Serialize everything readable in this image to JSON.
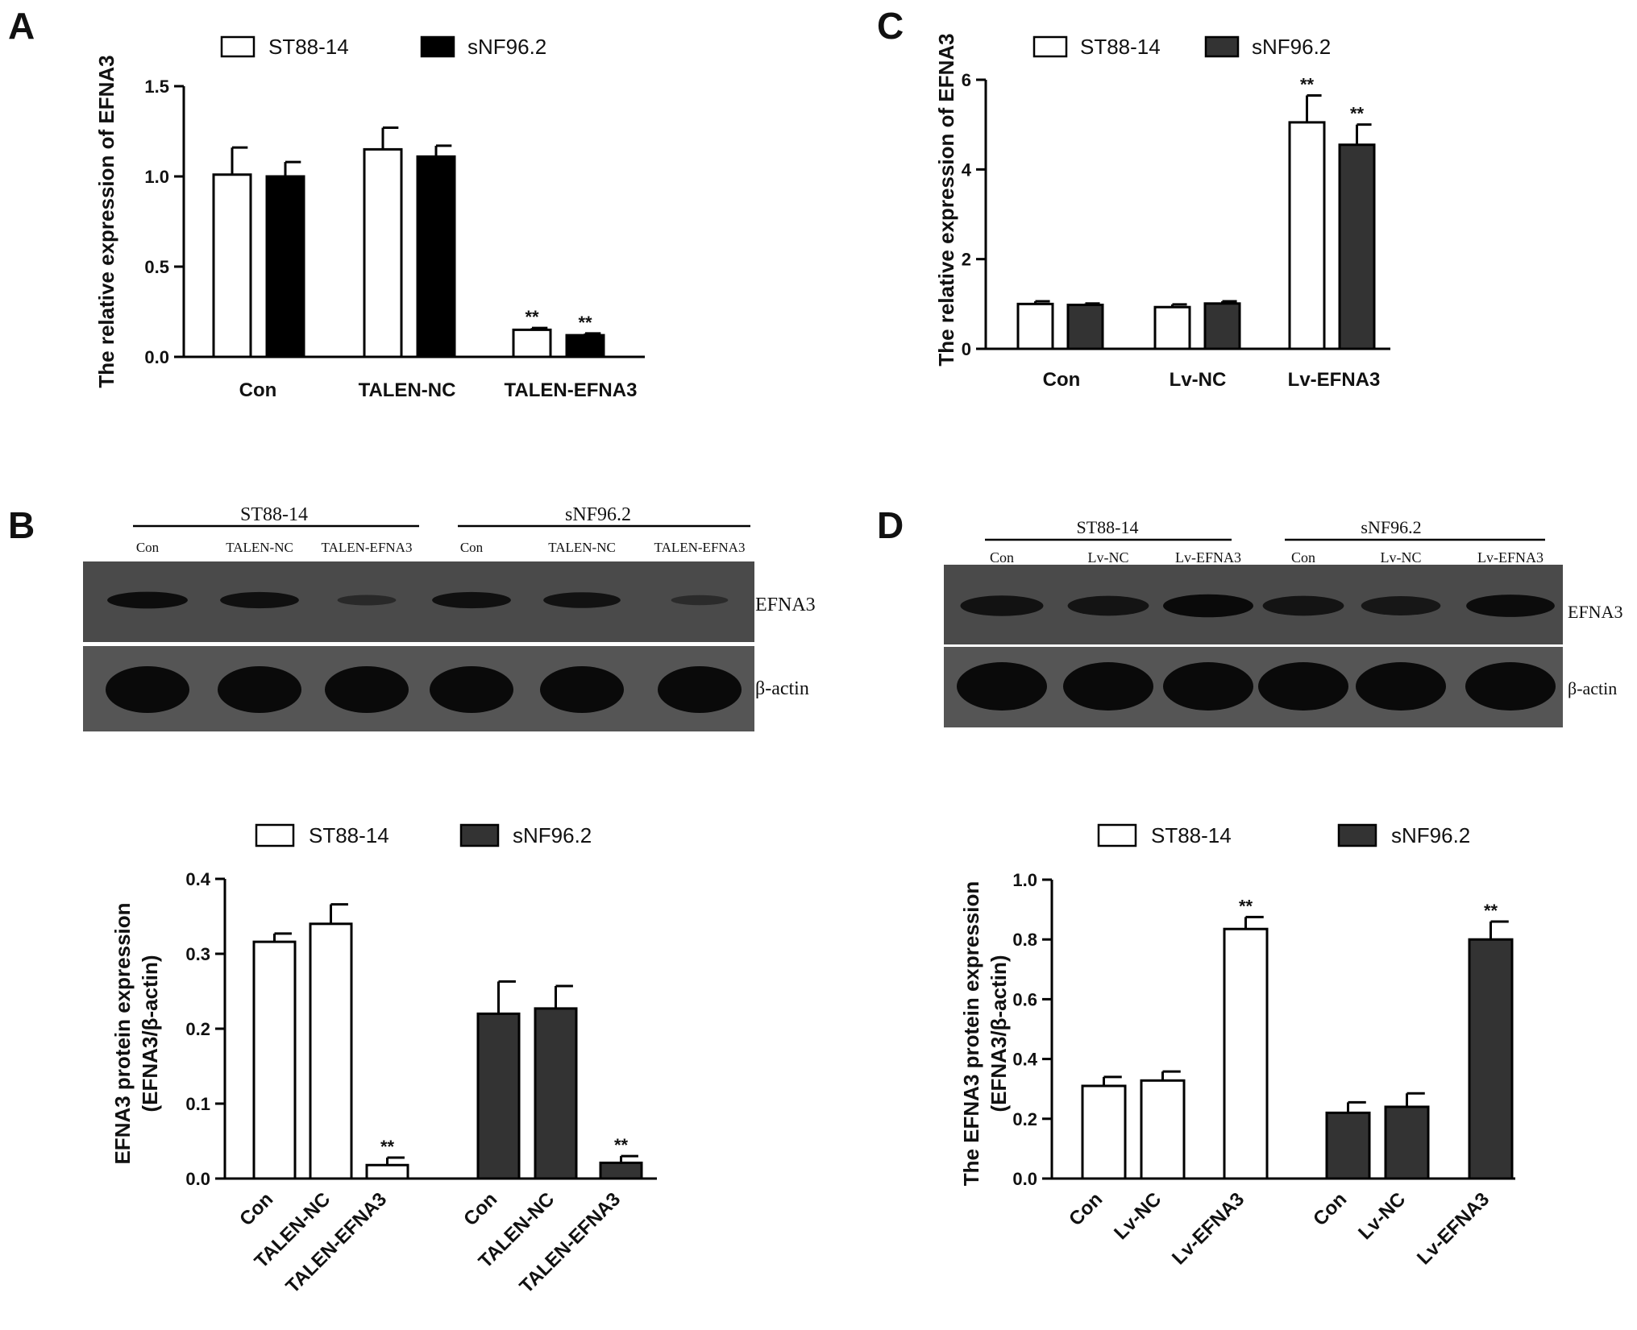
{
  "panels": {
    "a": "A",
    "b": "B",
    "c": "C",
    "d": "D"
  },
  "colors": {
    "open": "#ffffff",
    "black": "#000000",
    "dark": "#333333",
    "blot_bg": "#4a4a4a",
    "band": "#0a0a0a"
  },
  "blots": [
    {
      "groups": [
        "ST88-14",
        "sNF96.2"
      ],
      "lanes": [
        "Con",
        "TALEN-NC",
        "TALEN-EFNA3",
        "Con",
        "TALEN-NC",
        "TALEN-EFNA3"
      ],
      "rows": [
        "EFNA3",
        "β-actin"
      ],
      "band_intensity": [
        [
          0.9,
          0.85,
          0.25,
          0.85,
          0.8,
          0.2
        ],
        [
          1,
          1,
          1,
          1,
          1,
          1
        ]
      ]
    },
    {
      "groups": [
        "ST88-14",
        "sNF96.2"
      ],
      "lanes": [
        "Con",
        "Lv-NC",
        "Lv-EFNA3",
        "Con",
        "Lv-NC",
        "Lv-EFNA3"
      ],
      "rows": [
        "EFNA3",
        "β-actin"
      ],
      "band_intensity": [
        [
          0.8,
          0.75,
          1,
          0.75,
          0.7,
          0.95
        ],
        [
          1,
          1,
          1,
          1,
          1,
          1
        ]
      ]
    }
  ],
  "chart_data": [
    {
      "type": "bar",
      "ylabel": "The relative expression of EFNA3",
      "categories": [
        "Con",
        "TALEN-NC",
        "TALEN-EFNA3"
      ],
      "ylim": [
        0,
        1.5
      ],
      "yticks": [
        "0.0",
        "0.5",
        "1.0",
        "1.5"
      ],
      "series": [
        {
          "name": "ST88-14",
          "values": [
            1.01,
            1.15,
            0.15
          ],
          "errors": [
            0.15,
            0.12,
            0.01
          ],
          "marks": [
            "",
            "",
            "**"
          ]
        },
        {
          "name": "sNF96.2",
          "values": [
            1.0,
            1.11,
            0.12
          ],
          "errors": [
            0.08,
            0.06,
            0.01
          ],
          "marks": [
            "",
            "",
            "**"
          ]
        }
      ]
    },
    {
      "type": "bar",
      "ylabel": "The relative expression of EFNA3",
      "categories": [
        "Con",
        "Lv-NC",
        "Lv-EFNA3"
      ],
      "ylim": [
        0,
        6
      ],
      "yticks": [
        "0",
        "2",
        "4",
        "6"
      ],
      "series": [
        {
          "name": "ST88-14",
          "values": [
            1.0,
            0.93,
            5.05
          ],
          "errors": [
            0.06,
            0.06,
            0.6
          ],
          "marks": [
            "",
            "",
            "**"
          ]
        },
        {
          "name": "sNF96.2",
          "values": [
            0.98,
            1.01,
            4.55
          ],
          "errors": [
            0.03,
            0.05,
            0.45
          ],
          "marks": [
            "",
            "",
            "**"
          ]
        }
      ]
    },
    {
      "type": "bar",
      "ylabel_lines": [
        "EFNA3 protein expression",
        "(EFNA3/β-actin)"
      ],
      "categories": [
        "Con",
        "TALEN-NC",
        "TALEN-EFNA3"
      ],
      "ylim": [
        0,
        0.4
      ],
      "yticks": [
        "0.0",
        "0.1",
        "0.2",
        "0.3",
        "0.4"
      ],
      "series": [
        {
          "name": "ST88-14",
          "values": [
            0.316,
            0.34,
            0.018
          ],
          "errors": [
            0.011,
            0.026,
            0.01
          ],
          "marks": [
            "",
            "",
            "**"
          ]
        },
        {
          "name": "sNF96.2",
          "values": [
            0.22,
            0.227,
            0.021
          ],
          "errors": [
            0.043,
            0.03,
            0.009
          ],
          "marks": [
            "",
            "",
            "**"
          ]
        }
      ]
    },
    {
      "type": "bar",
      "ylabel_lines": [
        "The EFNA3 protein expression",
        "(EFNA3/β-actin)"
      ],
      "categories": [
        "Con",
        "Lv-NC",
        "Lv-EFNA3"
      ],
      "ylim": [
        0,
        1.0
      ],
      "yticks": [
        "0.0",
        "0.2",
        "0.4",
        "0.6",
        "0.8",
        "1.0"
      ],
      "series": [
        {
          "name": "ST88-14",
          "values": [
            0.31,
            0.328,
            0.835
          ],
          "errors": [
            0.03,
            0.03,
            0.04
          ],
          "marks": [
            "",
            "",
            "**"
          ]
        },
        {
          "name": "sNF96.2",
          "values": [
            0.22,
            0.24,
            0.8
          ],
          "errors": [
            0.035,
            0.045,
            0.06
          ],
          "marks": [
            "",
            "",
            "**"
          ]
        }
      ]
    }
  ]
}
